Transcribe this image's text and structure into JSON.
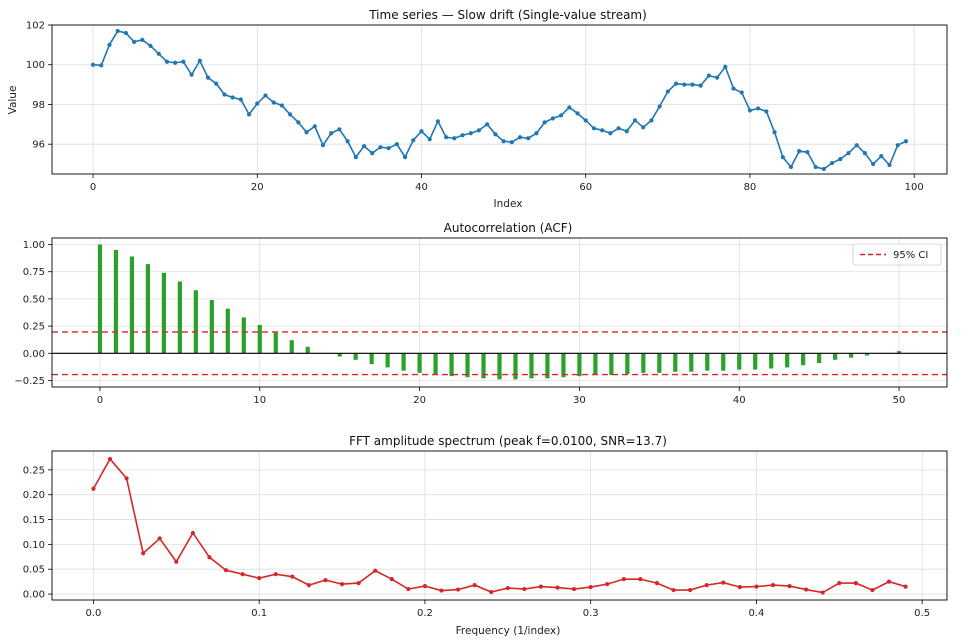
{
  "chart_data": [
    {
      "type": "line",
      "title": "Time series — Slow drift (Single-value stream)",
      "xlabel": "Index",
      "ylabel": "Value",
      "xlim": [
        -5,
        104
      ],
      "ylim": [
        94.5,
        102
      ],
      "xticks": [
        0,
        20,
        40,
        60,
        80,
        100
      ],
      "yticks": [
        96,
        98,
        100,
        102
      ],
      "grid": true,
      "colors": {
        "line": "#1f77b4"
      },
      "x_start": 0,
      "values": [
        100.0,
        99.97,
        101.0,
        101.7,
        101.6,
        101.15,
        101.25,
        100.95,
        100.55,
        100.15,
        100.1,
        100.15,
        99.5,
        100.2,
        99.35,
        99.05,
        98.5,
        98.35,
        98.25,
        97.5,
        98.05,
        98.45,
        98.1,
        97.95,
        97.5,
        97.1,
        96.6,
        96.9,
        95.95,
        96.55,
        96.75,
        96.15,
        95.35,
        95.9,
        95.55,
        95.85,
        95.8,
        96.0,
        95.35,
        96.2,
        96.65,
        96.25,
        97.15,
        96.35,
        96.3,
        96.45,
        96.55,
        96.7,
        97.0,
        96.5,
        96.15,
        96.1,
        96.35,
        96.3,
        96.55,
        97.1,
        97.3,
        97.45,
        97.85,
        97.55,
        97.2,
        96.8,
        96.7,
        96.55,
        96.8,
        96.65,
        97.2,
        96.85,
        97.2,
        97.9,
        98.65,
        99.05,
        99.0,
        99.0,
        98.95,
        99.45,
        99.35,
        99.9,
        98.8,
        98.6,
        97.7,
        97.8,
        97.65,
        96.6,
        95.35,
        94.85,
        95.65,
        95.6,
        94.85,
        94.75,
        95.05,
        95.25,
        95.55,
        95.95,
        95.55,
        95.0,
        95.4,
        94.95,
        95.95,
        96.15
      ]
    },
    {
      "type": "bar",
      "title": "Autocorrelation (ACF)",
      "xlim": [
        -3,
        53
      ],
      "ylim": [
        -0.31,
        1.06
      ],
      "xticks": [
        0,
        10,
        20,
        30,
        40,
        50
      ],
      "yticks": [
        -0.25,
        0.0,
        0.25,
        0.5,
        0.75,
        1.0
      ],
      "ytick_labels": [
        "−0.25",
        "0.00",
        "0.25",
        "0.50",
        "0.75",
        "1.00"
      ],
      "grid": true,
      "legend": {
        "position": "top-right",
        "entries": [
          "95% CI"
        ]
      },
      "ci": 0.196,
      "colors": {
        "bars": "#2ca02c",
        "ci": "#d62728",
        "zero": "#000000"
      },
      "lags_start": 0,
      "values": [
        1.0,
        0.95,
        0.89,
        0.82,
        0.74,
        0.66,
        0.58,
        0.49,
        0.41,
        0.33,
        0.26,
        0.19,
        0.12,
        0.06,
        0.0,
        -0.03,
        -0.06,
        -0.1,
        -0.13,
        -0.16,
        -0.18,
        -0.2,
        -0.21,
        -0.22,
        -0.23,
        -0.24,
        -0.24,
        -0.23,
        -0.23,
        -0.22,
        -0.21,
        -0.2,
        -0.2,
        -0.19,
        -0.18,
        -0.18,
        -0.17,
        -0.17,
        -0.16,
        -0.16,
        -0.15,
        -0.15,
        -0.14,
        -0.13,
        -0.11,
        -0.09,
        -0.06,
        -0.04,
        -0.02,
        0.0,
        0.02
      ]
    },
    {
      "type": "line",
      "title": "FFT amplitude spectrum (peak f=0.0100, SNR=13.7)",
      "xlabel": "Frequency (1/index)",
      "xlim": [
        -0.025,
        0.515
      ],
      "ylim": [
        -0.012,
        0.288
      ],
      "xticks": [
        0.0,
        0.1,
        0.2,
        0.3,
        0.4,
        0.5
      ],
      "xtick_labels": [
        "0.0",
        "0.1",
        "0.2",
        "0.3",
        "0.4",
        "0.5"
      ],
      "yticks": [
        0.0,
        0.05,
        0.1,
        0.15,
        0.2,
        0.25
      ],
      "ytick_labels": [
        "0.00",
        "0.05",
        "0.10",
        "0.15",
        "0.20",
        "0.25"
      ],
      "grid": true,
      "colors": {
        "line": "#d62728"
      },
      "x_step": 0.01,
      "values": [
        0.212,
        0.272,
        0.233,
        0.082,
        0.112,
        0.065,
        0.123,
        0.074,
        0.048,
        0.04,
        0.032,
        0.04,
        0.035,
        0.018,
        0.028,
        0.02,
        0.022,
        0.047,
        0.03,
        0.01,
        0.016,
        0.007,
        0.009,
        0.018,
        0.004,
        0.012,
        0.01,
        0.015,
        0.013,
        0.01,
        0.014,
        0.02,
        0.03,
        0.03,
        0.022,
        0.008,
        0.008,
        0.018,
        0.023,
        0.014,
        0.015,
        0.018,
        0.016,
        0.009,
        0.003,
        0.022,
        0.022,
        0.008,
        0.025,
        0.015
      ]
    }
  ]
}
